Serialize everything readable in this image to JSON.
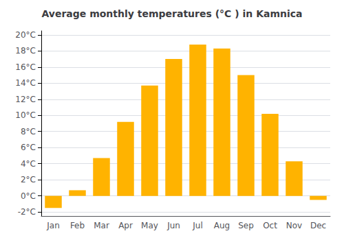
{
  "chart_data": {
    "type": "bar",
    "title": "Average monthly temperatures (°C ) in Kamnica",
    "categories": [
      "Jan",
      "Feb",
      "Mar",
      "Apr",
      "May",
      "Jun",
      "Jul",
      "Aug",
      "Sep",
      "Oct",
      "Nov",
      "Dec"
    ],
    "values": [
      -1.5,
      0.7,
      4.7,
      9.2,
      13.7,
      17.0,
      18.8,
      18.3,
      15.0,
      10.2,
      4.3,
      -0.5
    ],
    "color": "#FFB300",
    "ylim": [
      -2.5,
      20.5
    ],
    "yticks": [
      {
        "value": -2,
        "label": "-2°C"
      },
      {
        "value": 0,
        "label": "0°C"
      },
      {
        "value": 2,
        "label": "2°C"
      },
      {
        "value": 4,
        "label": "4°C"
      },
      {
        "value": 6,
        "label": "6°C"
      },
      {
        "value": 8,
        "label": "8°C"
      },
      {
        "value": 10,
        "label": "10°C"
      },
      {
        "value": 12,
        "label": "12°C"
      },
      {
        "value": 14,
        "label": "14°C"
      },
      {
        "value": 16,
        "label": "16°C"
      },
      {
        "value": 18,
        "label": "18°C"
      },
      {
        "value": 20,
        "label": "20°C"
      }
    ],
    "grid": true
  }
}
